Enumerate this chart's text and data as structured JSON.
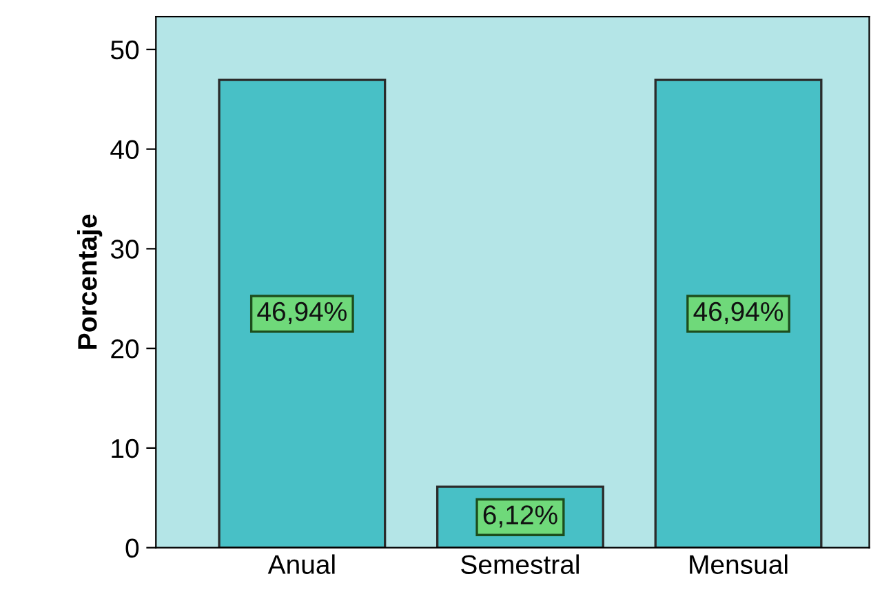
{
  "chart_data": {
    "type": "bar",
    "ylabel": "Porcentaje",
    "categories": [
      "Anual",
      "Semestral",
      "Mensual"
    ],
    "values": [
      46.94,
      6.12,
      46.94
    ],
    "value_labels": [
      "46,94%",
      "6,12%",
      "46,94%"
    ],
    "color": "#48c0c6",
    "ylim": [
      0,
      53.3
    ],
    "yticks": [
      0,
      10,
      20,
      30,
      40,
      50
    ],
    "grid": false,
    "legend": false
  }
}
